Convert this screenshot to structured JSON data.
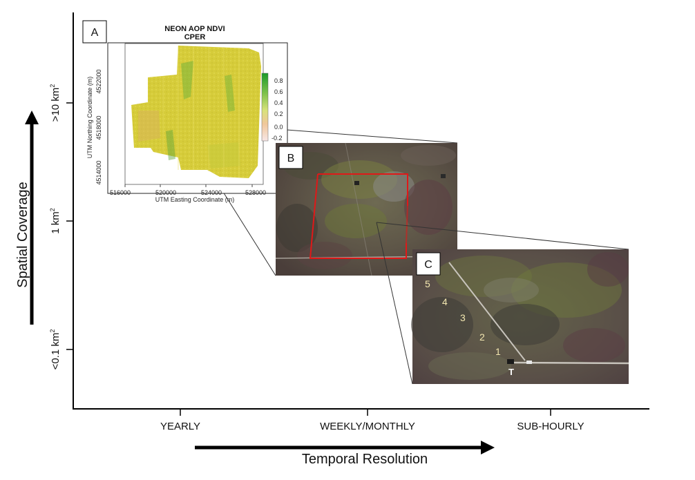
{
  "axes": {
    "x_title": "Temporal Resolution",
    "y_title": "Spatial Coverage",
    "x_ticks": [
      "YEARLY",
      "WEEKLY/MONTHLY",
      "SUB-HOURLY"
    ],
    "y_ticks": [
      {
        "base": "<0.1 km",
        "sup": "2"
      },
      {
        "base": "1 km",
        "sup": "2"
      },
      {
        "base": ">10 km",
        "sup": "2"
      }
    ]
  },
  "panel_a": {
    "label": "A",
    "title_line1": "NEON AOP NDVI",
    "title_line2": "CPER",
    "x_axis_label": "UTM Easting Coordinate (m)",
    "y_axis_label": "UTM Northing Coordinate (m)",
    "x_ticks": [
      "516000",
      "520000",
      "524000",
      "528000"
    ],
    "y_ticks": [
      "4514000",
      "4518000",
      "4522000"
    ],
    "colorbar_ticks": [
      "0.8",
      "0.6",
      "0.4",
      "0.2",
      "0.0",
      "-0.2"
    ]
  },
  "panel_b": {
    "label": "B"
  },
  "panel_c": {
    "label": "C",
    "plot_numbers": [
      "5",
      "4",
      "3",
      "2",
      "1"
    ],
    "tower_label": "T"
  }
}
